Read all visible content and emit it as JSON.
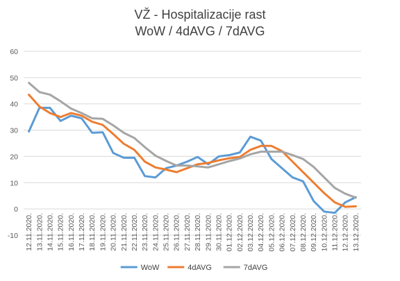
{
  "chart_data": {
    "type": "line",
    "title": "VŽ - Hospitalizacije rast",
    "subtitle": "WoW / 4dAVG / 7dAVG",
    "ylim": [
      -10,
      60
    ],
    "yticks": [
      -10,
      0,
      10,
      20,
      30,
      40,
      50,
      60
    ],
    "grid": true,
    "legend_position": "bottom",
    "categories": [
      "12.11.2020.",
      "13.11.2020.",
      "14.11.2020.",
      "15.11.2020.",
      "16.11.2020.",
      "17.11.2020.",
      "18.11.2020.",
      "19.11.2020.",
      "20.11.2020.",
      "21.11.2020.",
      "22.11.2020.",
      "23.11.2020.",
      "24.11.2020.",
      "25.11.2020.",
      "26.11.2020.",
      "27.11.2020.",
      "28.11.2020.",
      "29.11.2020.",
      "30.11.2020.",
      "01.12.2020.",
      "02.12.2020.",
      "03.12.2020.",
      "04.12.2020.",
      "05.12.2020.",
      "06.12.2020.",
      "07.12.2020.",
      "08.12.2020.",
      "09.12.2020.",
      "10.12.2020.",
      "11.12.2020.",
      "12.12.2020.",
      "13.12.2020."
    ],
    "series": [
      {
        "name": "WoW",
        "color": "#5B9BD5",
        "values": [
          29.5,
          38.5,
          38.5,
          33.5,
          35.5,
          34.5,
          29,
          29.2,
          21.3,
          19.5,
          19.5,
          12.5,
          12,
          15.5,
          16.5,
          18,
          19.8,
          17,
          20,
          20.5,
          21.5,
          27.5,
          26,
          19,
          15.5,
          12,
          10.5,
          3,
          -1,
          -1.5,
          2.5,
          4.5
        ]
      },
      {
        "name": "4dAVG",
        "color": "#ED7D31",
        "values": [
          43.5,
          39,
          36.5,
          35,
          36.5,
          35.5,
          33.2,
          32,
          28.5,
          24.8,
          22.5,
          18,
          15.8,
          15,
          14,
          15.5,
          17,
          17.5,
          18.5,
          19.3,
          19.8,
          22.5,
          24,
          24,
          22,
          18,
          14,
          10,
          6,
          2.5,
          0.8,
          1
        ]
      },
      {
        "name": "7dAVG",
        "color": "#A5A5A5",
        "values": [
          48,
          44.5,
          43.5,
          41,
          38.2,
          36.5,
          34.5,
          34.3,
          31.8,
          29,
          27,
          23.5,
          20.3,
          18.3,
          16.5,
          16.5,
          16.2,
          15.8,
          17,
          18.2,
          19.2,
          20.8,
          21.8,
          21.8,
          21.8,
          20.5,
          19,
          16,
          12,
          8,
          5.8,
          4.3
        ]
      }
    ]
  }
}
